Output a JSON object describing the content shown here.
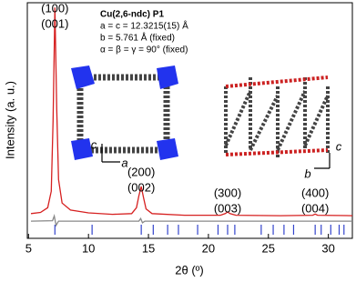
{
  "chart_data": {
    "type": "line",
    "xlabel": "2θ (º)",
    "ylabel": "Intensity (a. u.)",
    "xlim": [
      4.9,
      32
    ],
    "ylim": [
      0,
      100
    ],
    "xticks": [
      5,
      10,
      15,
      20,
      25,
      30
    ],
    "x": [
      5.2,
      6.0,
      6.6,
      6.9,
      7.05,
      7.2,
      7.35,
      7.5,
      7.8,
      8.5,
      10,
      12,
      13.6,
      14.0,
      14.2,
      14.4,
      14.6,
      14.8,
      15.3,
      18,
      21,
      21.4,
      21.6,
      21.8,
      22.3,
      26,
      28.7,
      28.9,
      29.1,
      32
    ],
    "series": [
      {
        "color": "#d62020",
        "values": [
          10.5,
          11,
          13,
          20,
          50,
          98,
          55,
          25,
          15,
          12,
          10.8,
          10.2,
          10.5,
          13,
          18,
          22,
          17,
          12.5,
          10.5,
          9.8,
          9.8,
          10.5,
          11.2,
          10.5,
          9.8,
          9.6,
          9.8,
          10.3,
          9.8,
          9.6
        ]
      }
    ],
    "difference": {
      "color": "#888888",
      "x": [
        5.2,
        7.0,
        7.15,
        7.3,
        7.5,
        14.2,
        14.35,
        14.5,
        14.7,
        32
      ],
      "values": [
        7.3,
        7.5,
        9.5,
        5.5,
        7.3,
        7.3,
        8.4,
        6.6,
        7.3,
        7.3
      ]
    },
    "bragg_positions": {
      "color": "#3344cc",
      "x": [
        7.2,
        10.3,
        14.4,
        15.4,
        16.6,
        17.5,
        19.1,
        20.8,
        21.6,
        22.2,
        24.4,
        25.4,
        26.3,
        27.1,
        28.9,
        29.4,
        30.2,
        30.9,
        31.3
      ]
    },
    "peak_labels": [
      {
        "x": 7.2,
        "lines": [
          "(100)",
          "(001)"
        ]
      },
      {
        "x": 14.4,
        "lines": [
          "(200)",
          "(002)"
        ]
      },
      {
        "x": 21.6,
        "lines": [
          "(300)",
          "(003)"
        ]
      },
      {
        "x": 28.9,
        "lines": [
          "(400)",
          "(004)"
        ]
      }
    ],
    "info": [
      "Cu(2,6-ndc) P1",
      "a = c = 12.3215(15) Å",
      "b = 5.761 Å (fixed)",
      "α = β = γ = 90° (fixed)"
    ],
    "axis_labels": [
      "c",
      "a",
      "b",
      "c"
    ]
  }
}
